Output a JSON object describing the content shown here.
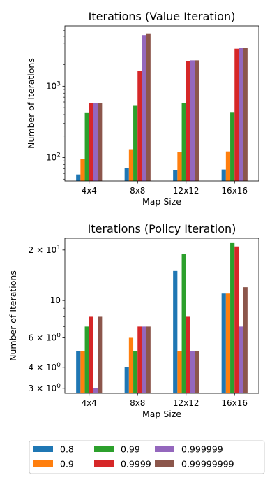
{
  "chart_data": [
    {
      "type": "bar",
      "title": "Iterations (Value Iteration)",
      "xlabel": "Map Size",
      "ylabel": "Number of Iterations",
      "yscale": "log",
      "ylim": [
        47,
        7000
      ],
      "yticks": [
        {
          "value": 100,
          "base": "10",
          "exp": "2"
        },
        {
          "value": 1000,
          "base": "10",
          "exp": "3"
        }
      ],
      "categories": [
        "4x4",
        "8x8",
        "12x12",
        "16x16"
      ],
      "series": [
        {
          "name": "0.8",
          "values": [
            58,
            72,
            67,
            68
          ]
        },
        {
          "name": "0.9",
          "values": [
            95,
            128,
            120,
            122
          ]
        },
        {
          "name": "0.99",
          "values": [
            420,
            530,
            575,
            425
          ]
        },
        {
          "name": "0.9999",
          "values": [
            575,
            1650,
            2250,
            3350
          ]
        },
        {
          "name": "0.999999",
          "values": [
            575,
            5200,
            2300,
            3450
          ]
        },
        {
          "name": "0.99999999",
          "values": [
            575,
            5500,
            2300,
            3450
          ]
        }
      ]
    },
    {
      "type": "bar",
      "title": "Iterations (Policy Iteration)",
      "xlabel": "Map Size",
      "ylabel": "Number of Iterations",
      "yscale": "log",
      "ylim": [
        2.8,
        23.5
      ],
      "yticks": [
        {
          "value": 3,
          "base": "3",
          "exp": "0"
        },
        {
          "value": 4,
          "base": "4",
          "exp": "0"
        },
        {
          "value": 6,
          "base": "6",
          "exp": "0"
        },
        {
          "value": 10,
          "label": "10"
        },
        {
          "value": 20,
          "base": "2",
          "exp": "1"
        }
      ],
      "categories": [
        "4x4",
        "8x8",
        "12x12",
        "16x16"
      ],
      "series": [
        {
          "name": "0.8",
          "values": [
            5,
            4,
            15,
            11
          ]
        },
        {
          "name": "0.9",
          "values": [
            5,
            6,
            5,
            11
          ]
        },
        {
          "name": "0.99",
          "values": [
            7,
            5,
            19,
            22
          ]
        },
        {
          "name": "0.9999",
          "values": [
            8,
            7,
            8,
            21
          ]
        },
        {
          "name": "0.999999",
          "values": [
            3,
            7,
            5,
            7
          ]
        },
        {
          "name": "0.99999999",
          "values": [
            8,
            7,
            5,
            12
          ]
        }
      ]
    }
  ],
  "colors": [
    "#1f77b4",
    "#ff7f0e",
    "#2ca02c",
    "#d62728",
    "#9467bd",
    "#8c564b"
  ],
  "legend": {
    "placement": "bottom",
    "entries": [
      "0.8",
      "0.99",
      "0.999999",
      "0.9",
      "0.9999",
      "0.99999999"
    ]
  }
}
